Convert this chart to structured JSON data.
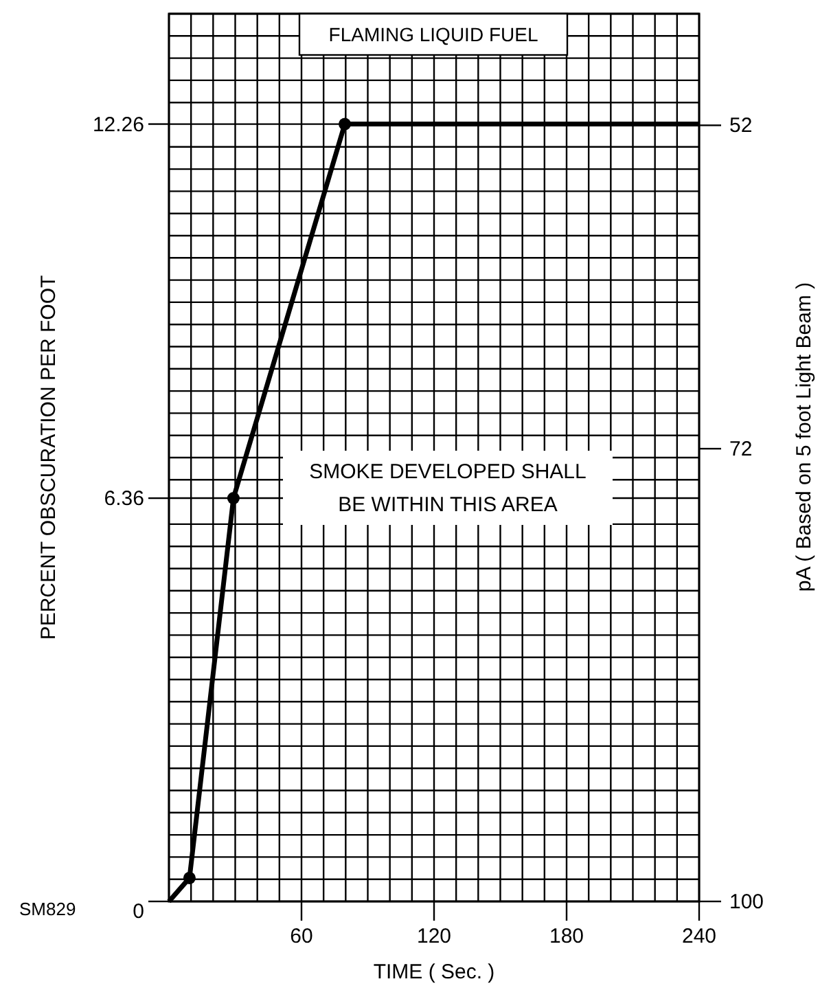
{
  "chart_data": {
    "type": "line",
    "title": "FLAMING LIQUID FUEL",
    "xlabel": "TIME ( Sec. )",
    "ylabel": "PERCENT OBSCURATION PER FOOT",
    "y2label": "pA ( Based on 5 foot Light Beam )",
    "annotations": [
      "SMOKE DEVELOPED SHALL\nBE WITHIN THIS AREA",
      "SM829"
    ],
    "series": [
      {
        "color": "#000000",
        "x": [
          0,
          9.3,
          29.2,
          79.6,
          240
        ],
        "values": [
          0,
          0.37,
          6.36,
          12.26,
          12.26
        ],
        "marker": "none"
      },
      {
        "type": "scatter",
        "color": "#000000",
        "x": [
          9.3,
          29.2,
          79.6
        ],
        "values": [
          0.37,
          6.36,
          12.26
        ],
        "marker": "circle"
      }
    ],
    "xlim": [
      0,
      240
    ],
    "ylim": [
      0,
      14
    ],
    "y2lim": [
      100,
      45.1
    ],
    "xticks": [
      {
        "value": 0,
        "label": null
      },
      {
        "value": 10,
        "label": null
      },
      {
        "value": 20,
        "label": null
      },
      {
        "value": 30,
        "label": null
      },
      {
        "value": 40,
        "label": null
      },
      {
        "value": 50,
        "label": null
      },
      60,
      {
        "value": 70,
        "label": null
      },
      {
        "value": 80,
        "label": null
      },
      {
        "value": 90,
        "label": null
      },
      {
        "value": 100,
        "label": null
      },
      {
        "value": 110,
        "label": null
      },
      120,
      {
        "value": 130,
        "label": null
      },
      {
        "value": 140,
        "label": null
      },
      {
        "value": 150,
        "label": null
      },
      {
        "value": 160,
        "label": null
      },
      {
        "value": 170,
        "label": null
      },
      180,
      {
        "value": 190,
        "label": null
      },
      {
        "value": 200,
        "label": null
      },
      {
        "value": 210,
        "label": null
      },
      {
        "value": 220,
        "label": null
      },
      {
        "value": 230,
        "label": null
      },
      240
    ],
    "yticks": [
      0,
      {
        "value": 0.35,
        "label": null
      },
      {
        "value": 0.7,
        "label": null
      },
      {
        "value": 1.05,
        "label": null
      },
      {
        "value": 1.4,
        "label": null
      },
      {
        "value": 1.75,
        "label": null
      },
      {
        "value": 2.1,
        "label": null
      },
      {
        "value": 2.45,
        "label": null
      },
      {
        "value": 2.8,
        "label": null
      },
      {
        "value": 3.15,
        "label": null
      },
      {
        "value": 3.5,
        "label": null
      },
      {
        "value": 3.85,
        "label": null
      },
      {
        "value": 4.2,
        "label": null
      },
      {
        "value": 4.55,
        "label": null
      },
      {
        "value": 4.9,
        "label": null
      },
      {
        "value": 5.25,
        "label": null
      },
      {
        "value": 5.6,
        "label": null
      },
      {
        "value": 5.95,
        "label": null
      },
      6.36,
      {
        "value": 6.65,
        "label": null
      },
      {
        "value": 7,
        "label": null
      },
      {
        "value": 7.35,
        "label": null
      },
      {
        "value": 7.7,
        "label": null
      },
      {
        "value": 8.05,
        "label": null
      },
      {
        "value": 8.4,
        "label": null
      },
      {
        "value": 8.75,
        "label": null
      },
      {
        "value": 9.1,
        "label": null
      },
      {
        "value": 9.45,
        "label": null
      },
      {
        "value": 9.8,
        "label": null
      },
      {
        "value": 10.15,
        "label": null
      },
      {
        "value": 10.5,
        "label": null
      },
      {
        "value": 10.85,
        "label": null
      },
      {
        "value": 11.2,
        "label": null
      },
      {
        "value": 11.55,
        "label": null
      },
      {
        "value": 11.9,
        "label": null
      },
      12.26,
      {
        "value": 12.6,
        "label": null
      },
      {
        "value": 12.95,
        "label": null
      },
      {
        "value": 13.3,
        "label": null
      },
      {
        "value": 13.65,
        "label": null
      },
      {
        "value": 14,
        "label": null
      }
    ],
    "y2ticks": [
      100,
      72,
      52
    ],
    "grid": true
  }
}
